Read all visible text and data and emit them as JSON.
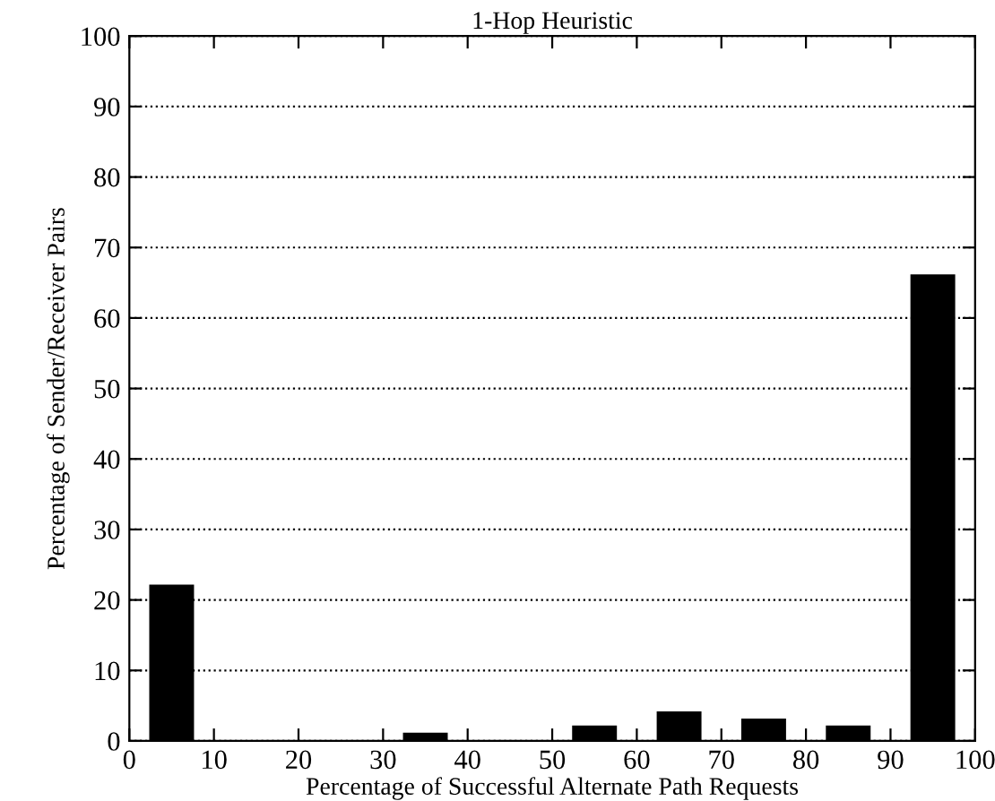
{
  "chart_data": {
    "type": "bar",
    "title": "1-Hop Heuristic",
    "xlabel": "Percentage of Successful Alternate Path Requests",
    "ylabel": "Percentage of Sender/Receiver Pairs",
    "x": [
      5,
      35,
      55,
      65,
      75,
      85,
      95
    ],
    "values": [
      22,
      1,
      2,
      4,
      3,
      2,
      66
    ],
    "color": "#000000",
    "xlim": [
      0,
      100
    ],
    "xticks": [
      0,
      10,
      20,
      30,
      40,
      50,
      60,
      70,
      80,
      90,
      100
    ],
    "ylim": [
      0,
      100
    ],
    "yticks": [
      0,
      10,
      20,
      30,
      40,
      50,
      60,
      70,
      80,
      90,
      100
    ],
    "grid": "y",
    "legend": false
  }
}
